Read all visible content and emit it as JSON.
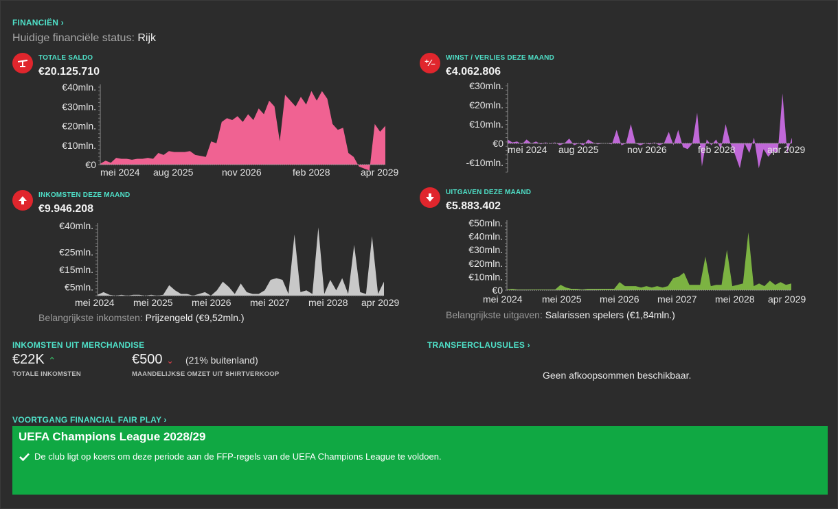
{
  "header": {
    "title": "FINANCIËN",
    "status_label": "Huidige financiële status:",
    "status_value": "Rijk"
  },
  "panels": [
    {
      "id": "saldo",
      "title": "TOTALE SALDO",
      "value": "€20.125.710",
      "icon": "balance-scale-icon"
    },
    {
      "id": "winst",
      "title": "WINST / VERLIES DEZE MAAND",
      "value": "€4.062.806",
      "icon": "plus-minus-icon"
    },
    {
      "id": "inkomsten",
      "title": "INKOMSTEN DEZE MAAND",
      "value": "€9.946.208",
      "icon": "arrow-up-icon"
    },
    {
      "id": "uitgaven",
      "title": "UITGAVEN DEZE MAAND",
      "value": "€5.883.402",
      "icon": "arrow-down-icon"
    }
  ],
  "income_note": {
    "label": "Belangrijkste inkomsten:",
    "value": "Prijzengeld (€9,52mln.)"
  },
  "expense_note": {
    "label": "Belangrijkste uitgaven:",
    "value": "Salarissen spelers (€1,84mln.)"
  },
  "merch": {
    "title": "INKOMSTEN UIT MERCHANDISE",
    "total_value": "€22K",
    "total_label": "TOTALE INKOMSTEN",
    "monthly_value": "€500",
    "monthly_extra": "(21% buitenland)",
    "monthly_label": "MAANDELIJKSE OMZET UIT SHIRTVERKOOP"
  },
  "transfer": {
    "title": "TRANSFERCLAUSULES",
    "empty": "Geen afkoopsommen beschikbaar."
  },
  "ffp": {
    "title": "VOORTGANG FINANCIAL FAIR PLAY",
    "competition": "UEFA Champions League 2028/29",
    "message": "De club ligt op koers om deze periode aan de FFP-regels van de UEFA Champions League te voldoen."
  },
  "colors": {
    "accent": "#4fe0c8",
    "saldo": "#f06292",
    "winst": "#c068d8",
    "inkomsten": "#c8c8c8",
    "uitgaven": "#7cb342",
    "ffp": "#10a843",
    "icon_red": "#e0262d"
  },
  "chart_data": [
    {
      "type": "area",
      "id": "saldo",
      "ylim": [
        0,
        40
      ],
      "yticks": [
        0,
        10,
        20,
        30,
        40
      ],
      "ytick_labels": [
        "€0",
        "€10mln.",
        "€20mln.",
        "€30mln.",
        "€40mln."
      ],
      "xtick_labels": [
        "mei 2024",
        "aug 2025",
        "nov 2026",
        "feb 2028",
        "apr 2029"
      ],
      "values": [
        0.5,
        2,
        1,
        3.5,
        3,
        3,
        2.5,
        3,
        3,
        3.5,
        3,
        6,
        5,
        7,
        6.5,
        6.5,
        6.5,
        7,
        5,
        4.5,
        4,
        12,
        11,
        22,
        24,
        23,
        25,
        22,
        26,
        23,
        29,
        26,
        33,
        30,
        12,
        36,
        33,
        30,
        35,
        31,
        38,
        33,
        38,
        34,
        21,
        18,
        19,
        6,
        4,
        -1,
        -2,
        -3,
        21,
        17,
        20
      ]
    },
    {
      "type": "area",
      "id": "winst",
      "ylim": [
        -15,
        30
      ],
      "yticks": [
        -10,
        0,
        10,
        20,
        30
      ],
      "ytick_labels": [
        "-€10mln.",
        "€0",
        "€10mln.",
        "€20mln.",
        "€30mln."
      ],
      "xtick_labels": [
        "mei 2024",
        "aug 2025",
        "nov 2026",
        "feb 2028",
        "apr 2029"
      ],
      "values": [
        2,
        0.5,
        1,
        -0.5,
        2,
        0,
        1,
        -0.5,
        0.5,
        -0.3,
        0.5,
        -1,
        0,
        2.5,
        -1,
        0,
        -1,
        2,
        0.5,
        -0.5,
        0,
        0,
        -0.5,
        7,
        -1,
        0,
        10,
        0,
        -1,
        0,
        -0.5,
        0.5,
        -1,
        0,
        6,
        -1,
        7,
        -2,
        -3,
        0,
        16,
        -12,
        2,
        -1,
        2,
        -3,
        10,
        0,
        -6,
        -13,
        0,
        -5,
        3,
        -13,
        -3,
        -7,
        -4,
        -5,
        26,
        -5,
        3
      ]
    },
    {
      "type": "area",
      "id": "inkomsten",
      "ylim": [
        0,
        40
      ],
      "yticks": [
        5,
        15,
        25,
        40
      ],
      "ytick_labels": [
        "€5mln.",
        "€15mln.",
        "€25mln.",
        "€40mln."
      ],
      "xtick_labels": [
        "mei 2024",
        "mei 2025",
        "mei 2026",
        "mei 2027",
        "mei 2028",
        "apr 2029"
      ],
      "values": [
        0.5,
        2,
        0.5,
        0,
        0.5,
        0,
        0.5,
        0.5,
        0,
        0.5,
        0,
        0.5,
        6,
        3,
        1,
        1,
        0,
        1,
        2,
        0,
        3,
        8,
        5,
        1,
        7,
        2,
        1,
        1,
        3,
        9,
        10,
        9,
        1,
        35,
        2,
        3,
        1,
        39,
        1,
        9,
        3,
        10,
        1,
        29,
        2,
        1,
        34,
        1,
        8
      ]
    },
    {
      "type": "area",
      "id": "uitgaven",
      "ylim": [
        0,
        50
      ],
      "yticks": [
        0,
        10,
        20,
        30,
        40,
        50
      ],
      "ytick_labels": [
        "€0",
        "€10mln.",
        "€20mln.",
        "€30mln.",
        "€40mln.",
        "€50mln."
      ],
      "xtick_labels": [
        "mei 2024",
        "mei 2025",
        "mei 2026",
        "mei 2027",
        "mei 2028",
        "apr 2029"
      ],
      "values": [
        0.5,
        1,
        0.5,
        0.5,
        0.5,
        0.5,
        0.5,
        0.5,
        0.5,
        0.5,
        4,
        2,
        1,
        1,
        0.5,
        1,
        1,
        1,
        1,
        1,
        1,
        6,
        3,
        3,
        3,
        2,
        3,
        2,
        3,
        2,
        3,
        9,
        10,
        13,
        4,
        4,
        4,
        25,
        3,
        4,
        4,
        30,
        3,
        4,
        5,
        43,
        3,
        5,
        3,
        7,
        4,
        6,
        4,
        5
      ]
    }
  ]
}
